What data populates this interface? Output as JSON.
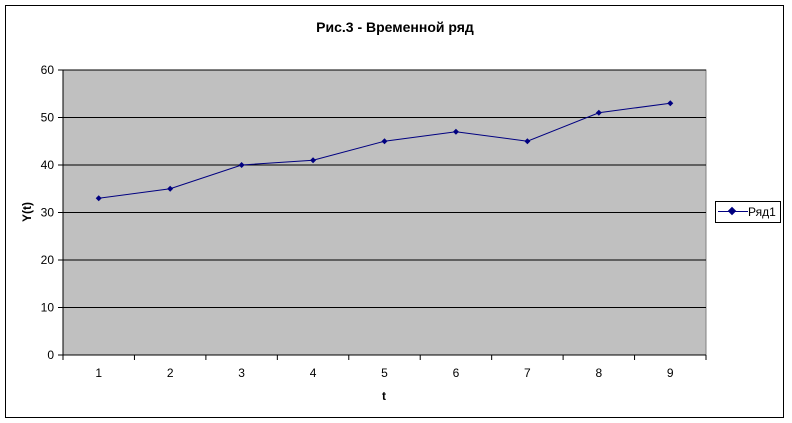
{
  "chart_data": {
    "type": "line",
    "title": "Рис.3 - Временной ряд",
    "xlabel": "t",
    "ylabel": "Y(t)",
    "categories": [
      "1",
      "2",
      "3",
      "4",
      "5",
      "6",
      "7",
      "8",
      "9"
    ],
    "series": [
      {
        "name": "Ряд1",
        "values": [
          33,
          35,
          40,
          41,
          45,
          47,
          45,
          51,
          53
        ],
        "color": "#000080"
      }
    ],
    "ylim": [
      0,
      60
    ],
    "yticks": [
      0,
      10,
      20,
      30,
      40,
      50,
      60
    ],
    "grid": true,
    "plot_background": "#c0c0c0",
    "legend_position": "right"
  }
}
